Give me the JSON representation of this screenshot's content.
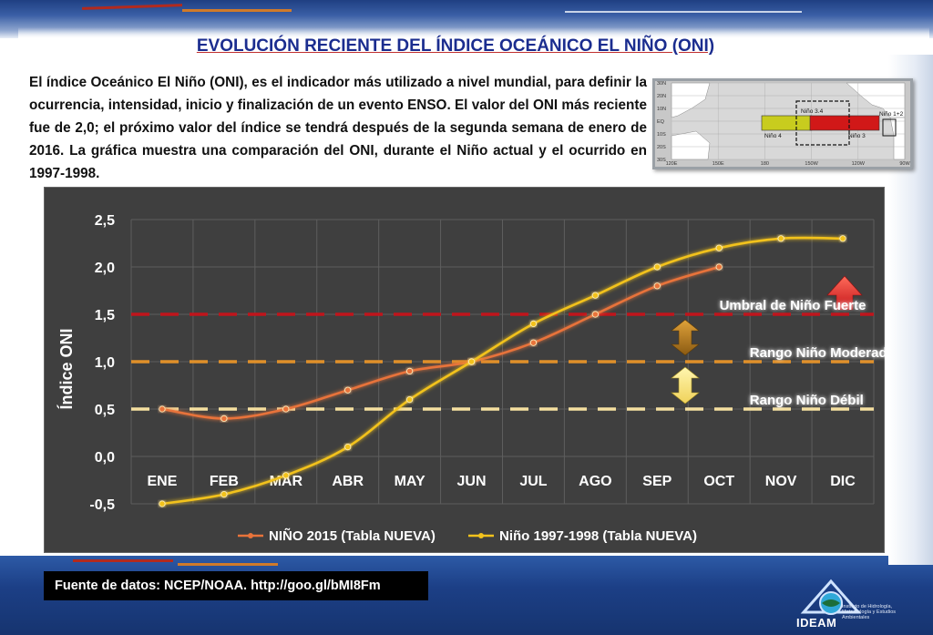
{
  "page": {
    "title": "EVOLUCIÓN RECIENTE DEL ÍNDICE OCEÁNICO EL NIÑO (ONI)",
    "intro": "El índice Oceánico El Niño (ONI), es el indicador más utilizado a nivel mundial, para definir la ocurrencia, intensidad, inicio y finalización de un evento ENSO. El valor del ONI más reciente fue de 2,0; el próximo valor del índice se tendrá después de la segunda semana de enero de 2016. La gráfica muestra una comparación del ONI, durante el Niño actual y el ocurrido en 1997-1998.",
    "source": "Fuente de datos: NCEP/NOAA. http://goo.gl/bMI8Fm",
    "logo_text": "IDEAM",
    "logo_sub": "Instituto de Hidrología, Meteorología y Estudios Ambientales"
  },
  "map": {
    "lat_labels": [
      "30N",
      "20N",
      "10N",
      "EQ",
      "10S",
      "20S",
      "30S"
    ],
    "lon_labels": [
      "120E",
      "150E",
      "180",
      "150W",
      "120W",
      "90W"
    ],
    "regions": [
      "Niño 4",
      "Niño 3.4",
      "Niño 3",
      "Niño 1+2"
    ],
    "colors": {
      "nino4": "#c8cc1e",
      "nino3": "#d11818",
      "land": "#ffffff",
      "sea": "#d8d8d8"
    }
  },
  "chart_data": {
    "type": "line",
    "ylabel": "Índice ONI",
    "categories": [
      "ENE",
      "FEB",
      "MAR",
      "ABR",
      "MAY",
      "JUN",
      "JUL",
      "AGO",
      "SEP",
      "OCT",
      "NOV",
      "DIC"
    ],
    "ylim": [
      -0.5,
      2.5
    ],
    "ytick_labels": [
      "2,5",
      "2,0",
      "1,5",
      "1,0",
      "0,5",
      "0,0",
      "-0,5"
    ],
    "yticks": [
      2.5,
      2.0,
      1.5,
      1.0,
      0.5,
      0.0,
      -0.5
    ],
    "grid": true,
    "legend_position": "bottom",
    "series": [
      {
        "name": "NIÑO 2015 (Tabla NUEVA)",
        "color": "#e8733a",
        "values": [
          0.5,
          0.4,
          0.5,
          0.7,
          0.9,
          1.0,
          1.2,
          1.5,
          1.8,
          2.0,
          null,
          null
        ]
      },
      {
        "name": "Niño 1997-1998 (Tabla NUEVA)",
        "color": "#f2c21c",
        "values": [
          -0.5,
          -0.4,
          -0.2,
          0.1,
          0.6,
          1.0,
          1.4,
          1.7,
          2.0,
          2.2,
          2.3,
          2.3
        ]
      }
    ],
    "thresholds": [
      {
        "value": 1.5,
        "color": "#c0151c"
      },
      {
        "value": 1.0,
        "color": "#e0902a"
      },
      {
        "value": 0.5,
        "color": "#f5e0a0"
      }
    ],
    "annotations": [
      {
        "text": "Umbral de Niño Fuerte",
        "value": 1.5
      },
      {
        "text": "Rango Niño Moderado",
        "value": 1.0
      },
      {
        "text": "Rango Niño Débil",
        "value": 0.5
      }
    ]
  }
}
